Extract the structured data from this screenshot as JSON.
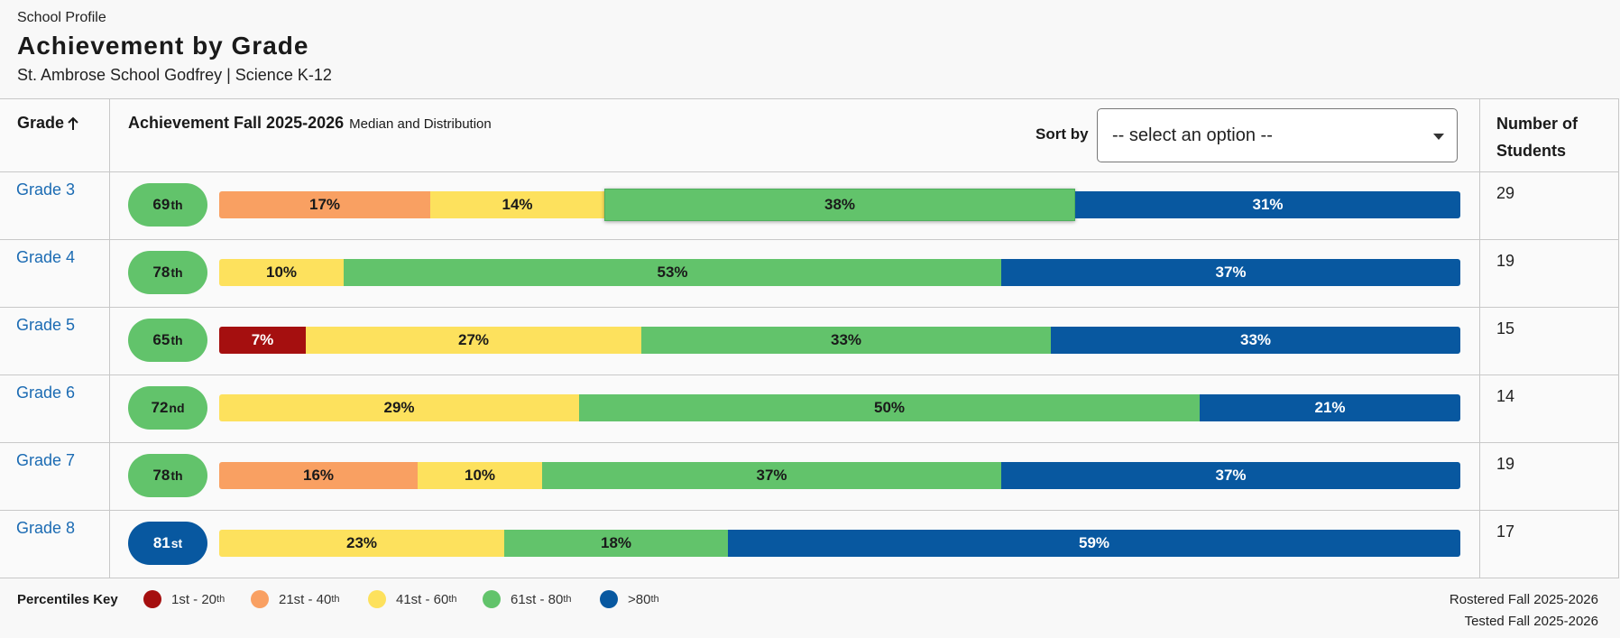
{
  "header": {
    "eyebrow": "School Profile",
    "title": "Achievement by Grade",
    "subtitle": "St. Ambrose School Godfrey | Science K-12"
  },
  "table": {
    "col_grade": "Grade",
    "col_achievement": "Achievement Fall 2025-2026",
    "col_achievement_sub": "Median and Distribution",
    "sort_label": "Sort by",
    "sort_value": "-- select an option --",
    "col_students_line1": "Number of",
    "col_students_line2": "Students"
  },
  "colors": {
    "p1": "#a50f0f",
    "p2": "#f9a062",
    "p3": "#fde15d",
    "p4": "#62c36b",
    "p5": "#0858a0",
    "link": "#1b6bb3"
  },
  "rows": [
    {
      "grade": "Grade 3",
      "median": "69",
      "suffix": "th",
      "band": 4,
      "students": "29",
      "segments": [
        {
          "band": 2,
          "pct": 17,
          "label": "17%"
        },
        {
          "band": 3,
          "pct": 14,
          "label": "14%"
        },
        {
          "band": 4,
          "pct": 38,
          "label": "38%",
          "highlight": true
        },
        {
          "band": 5,
          "pct": 31,
          "label": "31%"
        }
      ]
    },
    {
      "grade": "Grade 4",
      "median": "78",
      "suffix": "th",
      "band": 4,
      "students": "19",
      "segments": [
        {
          "band": 3,
          "pct": 10,
          "label": "10%"
        },
        {
          "band": 4,
          "pct": 53,
          "label": "53%"
        },
        {
          "band": 5,
          "pct": 37,
          "label": "37%"
        }
      ]
    },
    {
      "grade": "Grade 5",
      "median": "65",
      "suffix": "th",
      "band": 4,
      "students": "15",
      "segments": [
        {
          "band": 1,
          "pct": 7,
          "label": "7%"
        },
        {
          "band": 3,
          "pct": 27,
          "label": "27%"
        },
        {
          "band": 4,
          "pct": 33,
          "label": "33%"
        },
        {
          "band": 5,
          "pct": 33,
          "label": "33%"
        }
      ]
    },
    {
      "grade": "Grade 6",
      "median": "72",
      "suffix": "nd",
      "band": 4,
      "students": "14",
      "segments": [
        {
          "band": 3,
          "pct": 29,
          "label": "29%"
        },
        {
          "band": 4,
          "pct": 50,
          "label": "50%"
        },
        {
          "band": 5,
          "pct": 21,
          "label": "21%"
        }
      ]
    },
    {
      "grade": "Grade 7",
      "median": "78",
      "suffix": "th",
      "band": 4,
      "students": "19",
      "segments": [
        {
          "band": 2,
          "pct": 16,
          "label": "16%"
        },
        {
          "band": 3,
          "pct": 10,
          "label": "10%"
        },
        {
          "band": 4,
          "pct": 37,
          "label": "37%"
        },
        {
          "band": 5,
          "pct": 37,
          "label": "37%"
        }
      ]
    },
    {
      "grade": "Grade 8",
      "median": "81",
      "suffix": "st",
      "band": 5,
      "students": "17",
      "segments": [
        {
          "band": 3,
          "pct": 23,
          "label": "23%"
        },
        {
          "band": 4,
          "pct": 18,
          "label": "18%"
        },
        {
          "band": 5,
          "pct": 59,
          "label": "59%"
        }
      ]
    }
  ],
  "legend": {
    "title": "Percentiles Key",
    "items": [
      {
        "band": 1,
        "label": "1st - 20",
        "sup": "th"
      },
      {
        "band": 2,
        "label": "21st - 40",
        "sup": "th"
      },
      {
        "band": 3,
        "label": "41st - 60",
        "sup": "th"
      },
      {
        "band": 4,
        "label": "61st - 80",
        "sup": "th"
      },
      {
        "band": 5,
        "label": ">80",
        "sup": "th"
      }
    ],
    "footnote_rostered": "Rostered Fall 2025-2026",
    "footnote_tested": "Tested Fall 2025-2026"
  }
}
